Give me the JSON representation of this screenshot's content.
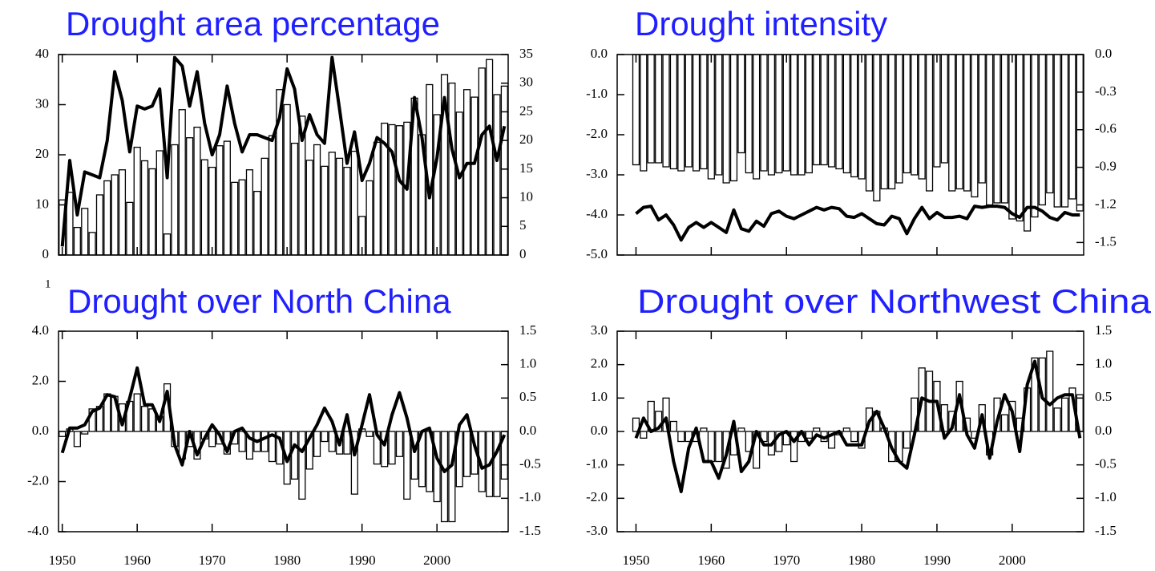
{
  "annotation": "1",
  "chart_data": [
    {
      "type": "bar",
      "title": "Drought area percentage",
      "x": [
        1950,
        1951,
        1952,
        1953,
        1954,
        1955,
        1956,
        1957,
        1958,
        1959,
        1960,
        1961,
        1962,
        1963,
        1964,
        1965,
        1966,
        1967,
        1968,
        1969,
        1970,
        1971,
        1972,
        1973,
        1974,
        1975,
        1976,
        1977,
        1978,
        1979,
        1980,
        1981,
        1982,
        1983,
        1984,
        1985,
        1986,
        1987,
        1988,
        1989,
        1990,
        1991,
        1992,
        1993,
        1994,
        1995,
        1996,
        1997,
        1998,
        1999,
        2000,
        2001,
        2002,
        2003,
        2004,
        2005,
        2006,
        2007,
        2008,
        2009
      ],
      "xlim": [
        1949.5,
        2009.5
      ],
      "xticks": [
        1950,
        1960,
        1970,
        1980,
        1990,
        2000
      ],
      "xtick_labels": false,
      "ylim": [
        0,
        40
      ],
      "yticks": [
        0,
        10,
        20,
        30,
        40
      ],
      "y2lim": [
        0,
        35
      ],
      "y2ticks": [
        0,
        5,
        10,
        15,
        20,
        25,
        30,
        35
      ],
      "series": [
        {
          "type": "bar",
          "color": "#ffffff",
          "values": [
            11,
            12.5,
            5.5,
            9.3,
            4.5,
            12,
            14.8,
            16,
            17,
            10.5,
            21.5,
            18.8,
            17.2,
            20.8,
            4.2,
            22,
            29,
            23.4,
            25.5,
            19,
            17.5,
            21.8,
            22.7,
            14.5,
            15,
            17,
            12.7,
            19.3,
            23.8,
            33,
            30,
            22.3,
            27.7,
            18.9,
            22,
            17.7,
            20.5,
            19.3,
            17.5,
            20.7,
            7.7,
            14.8,
            22.5,
            26.3,
            26,
            25.8,
            26.5,
            31.3,
            24,
            34,
            28,
            36,
            34.3,
            28.5,
            33,
            31.5,
            37.3,
            39,
            32,
            33.7
          ]
        },
        {
          "type": "line",
          "axis": "y2",
          "color": "#000000",
          "values": [
            1.5,
            16.5,
            7,
            14.5,
            14,
            13.5,
            20,
            32,
            27,
            18,
            26,
            25.5,
            26,
            29,
            13.5,
            34.5,
            33,
            26,
            32,
            23,
            17.5,
            21,
            29.5,
            23,
            18,
            21,
            21,
            20.5,
            20,
            24,
            32.5,
            29,
            20,
            24.5,
            21,
            19.5,
            34.5,
            25.5,
            16,
            21.5,
            13,
            16,
            20.5,
            19.5,
            18,
            13,
            11.5,
            27.5,
            20.5,
            10,
            17,
            27.5,
            18.5,
            13.5,
            16,
            16,
            21,
            22.5,
            16.5,
            22.5
          ]
        }
      ]
    },
    {
      "type": "bar",
      "title": "Drought intensity",
      "x": [
        1950,
        1951,
        1952,
        1953,
        1954,
        1955,
        1956,
        1957,
        1958,
        1959,
        1960,
        1961,
        1962,
        1963,
        1964,
        1965,
        1966,
        1967,
        1968,
        1969,
        1970,
        1971,
        1972,
        1973,
        1974,
        1975,
        1976,
        1977,
        1978,
        1979,
        1980,
        1981,
        1982,
        1983,
        1984,
        1985,
        1986,
        1987,
        1988,
        1989,
        1990,
        1991,
        1992,
        1993,
        1994,
        1995,
        1996,
        1997,
        1998,
        1999,
        2000,
        2001,
        2002,
        2003,
        2004,
        2005,
        2006,
        2007,
        2008,
        2009
      ],
      "xlim": [
        1947.5,
        2009.5
      ],
      "xticks": [
        1950,
        1960,
        1970,
        1980,
        1990,
        2000
      ],
      "xtick_labels": false,
      "ylim": [
        -5,
        0
      ],
      "yticks": [
        {
          "value": 0,
          "label": "0.0"
        },
        {
          "value": -1,
          "label": "-1.0"
        },
        {
          "value": -2,
          "label": "-2.0"
        },
        {
          "value": -3,
          "label": "-3.0"
        },
        {
          "value": -4,
          "label": "-4.0"
        },
        {
          "value": -5,
          "label": "-5.0"
        }
      ],
      "y2lim": [
        -1.6,
        0
      ],
      "y2ticks": [
        {
          "value": 0,
          "label": "0.0"
        },
        -0.3,
        -0.6,
        -0.9,
        -1.2,
        -1.5
      ],
      "series": [
        {
          "type": "bar",
          "color": "#ffffff",
          "values": [
            -2.75,
            -2.9,
            -2.7,
            -2.7,
            -2.8,
            -2.85,
            -2.9,
            -2.8,
            -2.9,
            -2.85,
            -3.1,
            -3.0,
            -3.2,
            -3.15,
            -2.45,
            -2.95,
            -3.1,
            -2.9,
            -3.0,
            -2.95,
            -2.9,
            -3.0,
            -3.0,
            -2.95,
            -2.75,
            -2.75,
            -2.8,
            -2.85,
            -2.95,
            -3.05,
            -3.1,
            -3.4,
            -3.65,
            -3.35,
            -3.35,
            -3.2,
            -2.95,
            -3.0,
            -3.1,
            -3.4,
            -2.8,
            -2.7,
            -3.4,
            -3.35,
            -3.4,
            -3.55,
            -3.2,
            -3.75,
            -3.7,
            -3.7,
            -4.1,
            -4.15,
            -4.4,
            -4.05,
            -3.75,
            -3.45,
            -3.8,
            -3.8,
            -3.6,
            -3.9
          ]
        },
        {
          "type": "line",
          "axis": "y2",
          "color": "#000000",
          "values": [
            -1.27,
            -1.22,
            -1.21,
            -1.32,
            -1.28,
            -1.36,
            -1.48,
            -1.38,
            -1.34,
            -1.38,
            -1.34,
            -1.38,
            -1.42,
            -1.24,
            -1.39,
            -1.41,
            -1.33,
            -1.37,
            -1.27,
            -1.25,
            -1.29,
            -1.31,
            -1.28,
            -1.25,
            -1.22,
            -1.24,
            -1.22,
            -1.23,
            -1.29,
            -1.3,
            -1.27,
            -1.31,
            -1.35,
            -1.36,
            -1.29,
            -1.31,
            -1.43,
            -1.31,
            -1.22,
            -1.31,
            -1.26,
            -1.3,
            -1.3,
            -1.29,
            -1.31,
            -1.21,
            -1.22,
            -1.21,
            -1.21,
            -1.22,
            -1.27,
            -1.3,
            -1.22,
            -1.22,
            -1.25,
            -1.3,
            -1.32,
            -1.26,
            -1.28,
            -1.28
          ]
        }
      ]
    },
    {
      "type": "bar",
      "title": "Drought over North China",
      "x": [
        1950,
        1951,
        1952,
        1953,
        1954,
        1955,
        1956,
        1957,
        1958,
        1959,
        1960,
        1961,
        1962,
        1963,
        1964,
        1965,
        1966,
        1967,
        1968,
        1969,
        1970,
        1971,
        1972,
        1973,
        1974,
        1975,
        1976,
        1977,
        1978,
        1979,
        1980,
        1981,
        1982,
        1983,
        1984,
        1985,
        1986,
        1987,
        1988,
        1989,
        1990,
        1991,
        1992,
        1993,
        1994,
        1995,
        1996,
        1997,
        1998,
        1999,
        2000,
        2001,
        2002,
        2003,
        2004,
        2005,
        2006,
        2007,
        2008,
        2009
      ],
      "xlim": [
        1949.5,
        2009.5
      ],
      "xticks": [
        1950,
        1960,
        1970,
        1980,
        1990,
        2000
      ],
      "xtick_labels": true,
      "ylim": [
        -4,
        4
      ],
      "yticks": [
        {
          "value": 4,
          "label": "4.0"
        },
        {
          "value": 2,
          "label": "2.0"
        },
        {
          "value": 0,
          "label": "0.0"
        },
        {
          "value": -2,
          "label": "-2.0"
        },
        {
          "value": -4,
          "label": "-4.0"
        }
      ],
      "y2lim": [
        -1.5,
        1.5
      ],
      "y2ticks": [
        1.5,
        {
          "value": 1,
          "label": "1.0"
        },
        0.5,
        {
          "value": 0,
          "label": "0.0"
        },
        -0.5,
        {
          "value": -1,
          "label": "-1.0"
        },
        -1.5
      ],
      "series": [
        {
          "type": "bar",
          "color": "#ffffff",
          "values": [
            -0.2,
            0.1,
            -0.6,
            -0.1,
            0.9,
            1.0,
            1.5,
            1.4,
            1.1,
            1.2,
            1.5,
            1.0,
            0.9,
            0.6,
            1.9,
            -0.6,
            -1.1,
            -0.6,
            -1.1,
            -0.3,
            -0.6,
            -0.5,
            -0.9,
            -0.5,
            -0.8,
            -1.1,
            -0.8,
            -0.8,
            -1.2,
            -1.3,
            -2.1,
            -1.9,
            -2.7,
            -1.5,
            -1.0,
            -0.4,
            -0.8,
            -0.9,
            -0.9,
            -2.5,
            0.1,
            -0.2,
            -1.3,
            -1.4,
            -1.3,
            -1.0,
            -2.7,
            -1.9,
            -2.2,
            -2.4,
            -2.8,
            -3.6,
            -3.6,
            -2.2,
            -1.8,
            -1.7,
            -2.4,
            -2.6,
            -2.6,
            -1.9
          ]
        },
        {
          "type": "line",
          "axis": "y2",
          "color": "#000000",
          "values": [
            -0.32,
            0.05,
            0.05,
            0.1,
            0.3,
            0.35,
            0.55,
            0.52,
            0.1,
            0.5,
            0.95,
            0.4,
            0.4,
            0.15,
            0.6,
            -0.2,
            -0.5,
            0.0,
            -0.35,
            -0.1,
            0.1,
            -0.05,
            -0.3,
            0.0,
            0.05,
            -0.1,
            -0.15,
            -0.1,
            -0.05,
            -0.1,
            -0.45,
            -0.2,
            -0.3,
            -0.1,
            0.1,
            0.35,
            0.15,
            -0.2,
            0.25,
            -0.35,
            0.1,
            0.55,
            -0.05,
            -0.2,
            0.25,
            0.58,
            0.2,
            -0.3,
            0.0,
            0.05,
            -0.4,
            -0.6,
            -0.5,
            0.1,
            0.25,
            -0.2,
            -0.55,
            -0.5,
            -0.3,
            -0.05
          ]
        }
      ]
    },
    {
      "type": "bar",
      "title": "Drought over Northwest China",
      "x": [
        1950,
        1951,
        1952,
        1953,
        1954,
        1955,
        1956,
        1957,
        1958,
        1959,
        1960,
        1961,
        1962,
        1963,
        1964,
        1965,
        1966,
        1967,
        1968,
        1969,
        1970,
        1971,
        1972,
        1973,
        1974,
        1975,
        1976,
        1977,
        1978,
        1979,
        1980,
        1981,
        1982,
        1983,
        1984,
        1985,
        1986,
        1987,
        1988,
        1989,
        1990,
        1991,
        1992,
        1993,
        1994,
        1995,
        1996,
        1997,
        1998,
        1999,
        2000,
        2001,
        2002,
        2003,
        2004,
        2005,
        2006,
        2007,
        2008,
        2009
      ],
      "xlim": [
        1947.5,
        2009.5
      ],
      "xticks": [
        1950,
        1960,
        1970,
        1980,
        1990,
        2000
      ],
      "xtick_labels": true,
      "ylim": [
        -3,
        3
      ],
      "yticks": [
        {
          "value": 3,
          "label": "3.0"
        },
        {
          "value": 2,
          "label": "2.0"
        },
        {
          "value": 1,
          "label": "1.0"
        },
        {
          "value": 0,
          "label": "0.0"
        },
        {
          "value": -1,
          "label": "-1.0"
        },
        {
          "value": -2,
          "label": "-2.0"
        },
        {
          "value": -3,
          "label": "-3.0"
        }
      ],
      "y2lim": [
        -1.5,
        1.5
      ],
      "y2ticks": [
        1.5,
        {
          "value": 1,
          "label": "1.0"
        },
        0.5,
        {
          "value": 0,
          "label": "0.0"
        },
        -0.5,
        {
          "value": -1,
          "label": "-1.0"
        },
        -1.5
      ],
      "series": [
        {
          "type": "bar",
          "color": "#ffffff",
          "values": [
            0.4,
            -0.2,
            0.9,
            0.6,
            1.0,
            0.3,
            -0.3,
            -0.3,
            -0.3,
            0.1,
            -0.9,
            -0.9,
            -1.1,
            -0.7,
            0.1,
            -0.6,
            -1.1,
            -0.3,
            -0.7,
            -0.6,
            -0.4,
            -0.9,
            -0.3,
            -0.2,
            0.1,
            -0.3,
            -0.5,
            -0.1,
            0.1,
            -0.3,
            -0.5,
            0.7,
            0.6,
            0.1,
            -0.9,
            -0.9,
            -0.5,
            1.0,
            1.9,
            1.8,
            1.5,
            0.8,
            0.6,
            1.5,
            0.4,
            -0.2,
            0.8,
            -0.7,
            1.0,
            0.5,
            0.9,
            0.4,
            1.3,
            2.2,
            2.2,
            2.4,
            0.7,
            1.0,
            1.3,
            1.1
          ]
        },
        {
          "type": "line",
          "axis": "y2",
          "color": "#000000",
          "values": [
            -0.1,
            0.2,
            0.0,
            0.05,
            0.2,
            -0.45,
            -0.9,
            -0.25,
            0.05,
            -0.45,
            -0.45,
            -0.7,
            -0.35,
            0.15,
            -0.6,
            -0.45,
            0.0,
            -0.2,
            -0.2,
            -0.05,
            0.0,
            -0.15,
            0.0,
            -0.2,
            -0.05,
            -0.1,
            -0.05,
            0.0,
            -0.2,
            -0.2,
            -0.2,
            0.15,
            0.3,
            0.05,
            -0.25,
            -0.45,
            -0.55,
            -0.05,
            0.5,
            0.45,
            0.45,
            -0.1,
            0.05,
            0.55,
            -0.05,
            -0.25,
            0.25,
            -0.4,
            0.15,
            0.55,
            0.3,
            -0.3,
            0.7,
            1.05,
            0.5,
            0.4,
            0.5,
            0.55,
            0.55,
            -0.1
          ]
        }
      ]
    }
  ]
}
